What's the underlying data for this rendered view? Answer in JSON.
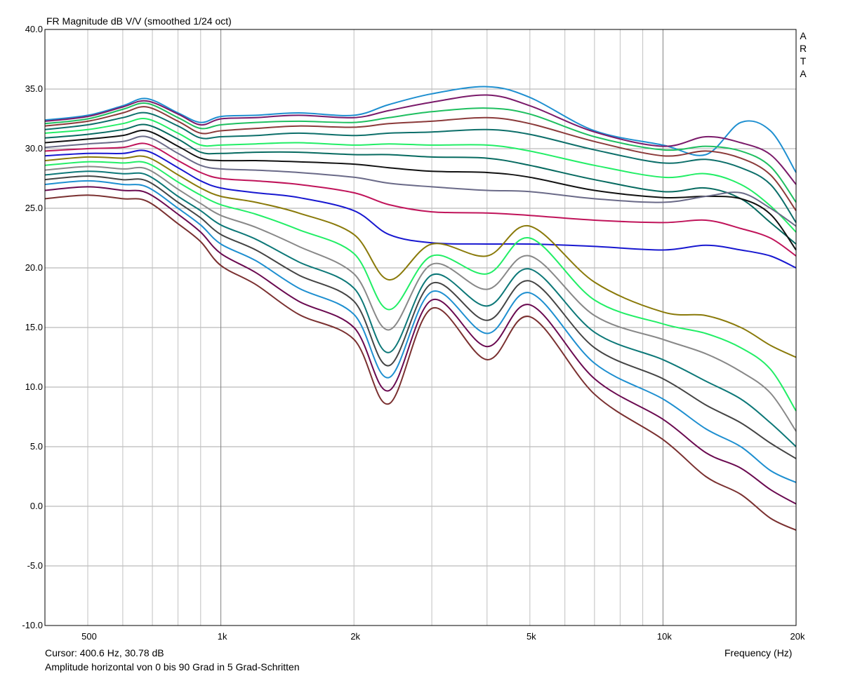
{
  "chart_data": {
    "type": "line",
    "title": "FR Magnitude dB V/V (smoothed 1/24 oct)",
    "brand": "ARTA",
    "xlabel": "Frequency (Hz)",
    "ylabel": "",
    "x_scale": "log",
    "xlim": [
      400,
      20000
    ],
    "ylim": [
      -10,
      40
    ],
    "y_ticks": [
      "40.0",
      "35.0",
      "30.0",
      "25.0",
      "20.0",
      "15.0",
      "10.0",
      "5.0",
      "0.0",
      "-5.0",
      "-10.0"
    ],
    "x_ticks": [
      {
        "value": 500,
        "label": "500"
      },
      {
        "value": 1000,
        "label": "1k"
      },
      {
        "value": 2000,
        "label": "2k"
      },
      {
        "value": 5000,
        "label": "5k"
      },
      {
        "value": 10000,
        "label": "10k"
      },
      {
        "value": 20000,
        "label": "20k"
      }
    ],
    "grid": true,
    "cursor_text": "Cursor: 400.6 Hz, 30.78 dB",
    "footer_text": "Amplitude horizontal von 0 bis 90 Grad in 5 Grad-Schritten",
    "x": [
      400,
      500,
      600,
      680,
      800,
      900,
      1000,
      1200,
      1500,
      2000,
      2400,
      3000,
      4000,
      5000,
      7000,
      10000,
      12500,
      15000,
      17500,
      20000
    ],
    "series": [
      {
        "color": "#1e8fd0",
        "values": [
          32.4,
          32.8,
          33.6,
          34.2,
          33.0,
          32.2,
          32.7,
          32.8,
          33.0,
          32.8,
          33.7,
          34.6,
          35.2,
          34.3,
          31.5,
          30.3,
          29.5,
          32.2,
          31.5,
          28.0
        ]
      },
      {
        "color": "#7a1a6a",
        "values": [
          32.3,
          32.7,
          33.5,
          34.0,
          32.9,
          32.0,
          32.5,
          32.6,
          32.8,
          32.6,
          33.2,
          33.9,
          34.5,
          33.6,
          31.4,
          30.2,
          31.0,
          30.5,
          29.5,
          27.0
        ]
      },
      {
        "color": "#1fbf60",
        "values": [
          32.1,
          32.5,
          33.3,
          33.8,
          32.6,
          31.7,
          32.0,
          32.2,
          32.3,
          32.2,
          32.6,
          33.1,
          33.4,
          32.9,
          31.0,
          29.9,
          30.2,
          29.8,
          28.5,
          25.5
        ]
      },
      {
        "color": "#8b3a3a",
        "values": [
          31.9,
          32.3,
          33.0,
          33.5,
          32.3,
          31.3,
          31.5,
          31.7,
          31.9,
          31.8,
          32.1,
          32.3,
          32.6,
          32.1,
          30.6,
          29.4,
          29.8,
          29.2,
          27.8,
          24.8
        ]
      },
      {
        "color": "#0d6f6a",
        "values": [
          31.6,
          32.0,
          32.6,
          33.0,
          31.9,
          30.9,
          31.0,
          31.1,
          31.3,
          31.1,
          31.3,
          31.4,
          31.6,
          31.2,
          29.9,
          28.8,
          29.1,
          28.4,
          27.0,
          23.8
        ]
      },
      {
        "color": "#22ee66",
        "values": [
          31.3,
          31.6,
          32.1,
          32.5,
          31.3,
          30.3,
          30.3,
          30.4,
          30.5,
          30.3,
          30.4,
          30.3,
          30.3,
          29.8,
          28.6,
          27.6,
          27.9,
          27.0,
          25.2,
          23.0
        ]
      },
      {
        "color": "#066a60",
        "values": [
          30.9,
          31.2,
          31.6,
          32.0,
          30.8,
          29.7,
          29.6,
          29.7,
          29.7,
          29.5,
          29.5,
          29.3,
          29.2,
          28.6,
          27.4,
          26.4,
          26.7,
          25.8,
          23.8,
          22.0
        ]
      },
      {
        "color": "#111111",
        "values": [
          30.5,
          30.8,
          31.1,
          31.5,
          30.2,
          29.2,
          29.0,
          29.0,
          28.9,
          28.7,
          28.4,
          28.1,
          28.0,
          27.6,
          26.5,
          25.9,
          26.0,
          25.8,
          24.5,
          21.5
        ]
      },
      {
        "color": "#6a6a88",
        "values": [
          30.1,
          30.4,
          30.6,
          31.0,
          29.6,
          28.6,
          28.3,
          28.2,
          28.0,
          27.6,
          27.1,
          26.8,
          26.5,
          26.4,
          25.8,
          25.5,
          26.0,
          26.3,
          25.0,
          23.5
        ]
      },
      {
        "color": "#c0145a",
        "values": [
          29.8,
          30.0,
          30.1,
          30.4,
          29.0,
          28.0,
          27.5,
          27.3,
          27.0,
          26.3,
          25.3,
          24.7,
          24.6,
          24.4,
          24.0,
          23.8,
          24.0,
          23.3,
          22.5,
          21.0
        ]
      },
      {
        "color": "#1818d0",
        "values": [
          29.4,
          29.6,
          29.6,
          29.8,
          28.4,
          27.3,
          26.7,
          26.3,
          25.9,
          24.8,
          22.8,
          22.1,
          22.0,
          22.0,
          21.8,
          21.5,
          21.9,
          21.5,
          21.0,
          20.0
        ]
      },
      {
        "color": "#8a7a0a",
        "values": [
          29.0,
          29.3,
          29.2,
          29.3,
          27.8,
          26.7,
          26.0,
          25.5,
          24.6,
          22.8,
          19.0,
          22.0,
          21.0,
          23.5,
          18.8,
          16.3,
          16.0,
          15.0,
          13.5,
          12.5
        ]
      },
      {
        "color": "#22ee66",
        "values": [
          28.6,
          28.9,
          28.8,
          28.8,
          27.2,
          26.1,
          25.3,
          24.5,
          23.2,
          21.2,
          16.5,
          21.0,
          19.5,
          22.5,
          17.3,
          15.3,
          14.5,
          13.3,
          11.5,
          8.0
        ]
      },
      {
        "color": "#888888",
        "values": [
          28.2,
          28.5,
          28.3,
          28.3,
          26.6,
          25.4,
          24.4,
          23.4,
          21.8,
          19.5,
          14.8,
          20.3,
          18.2,
          21.0,
          16.0,
          14.0,
          12.8,
          11.3,
          9.5,
          6.3
        ]
      },
      {
        "color": "#0d7878",
        "values": [
          27.8,
          28.1,
          27.9,
          27.8,
          26.0,
          24.8,
          23.6,
          22.4,
          20.5,
          18.3,
          12.9,
          19.4,
          16.8,
          19.9,
          14.6,
          12.3,
          10.5,
          9.0,
          7.0,
          5.0
        ]
      },
      {
        "color": "#444444",
        "values": [
          27.4,
          27.7,
          27.4,
          27.3,
          25.5,
          24.2,
          22.8,
          21.5,
          19.4,
          17.2,
          11.8,
          18.7,
          15.6,
          18.9,
          13.3,
          10.7,
          8.5,
          7.0,
          5.3,
          4.0
        ]
      },
      {
        "color": "#1e8fd0",
        "values": [
          27.0,
          27.3,
          27.0,
          26.8,
          25.0,
          23.6,
          22.0,
          20.6,
          18.3,
          16.1,
          10.8,
          18.0,
          14.5,
          17.9,
          12.0,
          9.0,
          6.5,
          5.0,
          3.0,
          2.0
        ]
      },
      {
        "color": "#6a0a50",
        "values": [
          26.5,
          26.8,
          26.5,
          26.3,
          24.5,
          23.0,
          21.2,
          19.6,
          17.2,
          15.0,
          9.7,
          17.3,
          13.4,
          16.9,
          10.7,
          7.3,
          4.5,
          3.2,
          1.4,
          0.2
        ]
      },
      {
        "color": "#7a3030",
        "values": [
          25.8,
          26.1,
          25.8,
          25.6,
          23.7,
          22.2,
          20.2,
          18.6,
          16.1,
          14.0,
          8.6,
          16.6,
          12.3,
          15.9,
          9.4,
          5.6,
          2.5,
          1.0,
          -1.0,
          -2.0
        ]
      }
    ]
  }
}
